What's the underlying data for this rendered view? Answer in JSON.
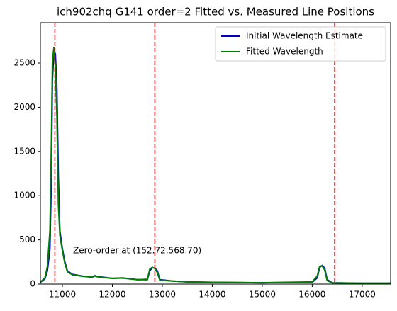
{
  "chart_data": {
    "type": "line",
    "title": "ich902chq G141 order=2 Fitted vs. Measured Line Positions",
    "annotation": "Zero-order at (152.72,568.70)",
    "x": [
      10560,
      10650,
      10700,
      10750,
      10780,
      10800,
      10830,
      10860,
      10890,
      10920,
      10950,
      11000,
      11050,
      11100,
      11200,
      11400,
      11600,
      11650,
      11700,
      12000,
      12200,
      12500,
      12700,
      12750,
      12800,
      12850,
      12900,
      12950,
      13200,
      13500,
      14000,
      15000,
      16000,
      16100,
      16150,
      16200,
      16250,
      16300,
      16400,
      17000,
      17570
    ],
    "series": [
      {
        "name": "Initial Wavelength Estimate",
        "color": "#0000cc",
        "values": [
          20,
          60,
          150,
          400,
          1200,
          2300,
          2650,
          2600,
          2200,
          1200,
          600,
          400,
          250,
          150,
          110,
          90,
          80,
          95,
          85,
          65,
          70,
          50,
          50,
          150,
          185,
          180,
          150,
          50,
          35,
          25,
          20,
          15,
          20,
          70,
          190,
          210,
          180,
          50,
          15,
          10,
          10
        ]
      },
      {
        "name": "Fitted Wavelength",
        "color": "#008000",
        "values": [
          22,
          70,
          200,
          600,
          1600,
          2500,
          2680,
          2450,
          1900,
          900,
          550,
          380,
          230,
          140,
          105,
          88,
          78,
          92,
          82,
          64,
          68,
          49,
          55,
          170,
          190,
          175,
          130,
          45,
          34,
          25,
          20,
          15,
          25,
          90,
          200,
          205,
          160,
          40,
          14,
          10,
          10
        ]
      }
    ],
    "vlines": [
      10850,
      12850,
      16450
    ],
    "vline_color": "#e41a1c",
    "xlim": [
      10560,
      17570
    ],
    "ylim": [
      0,
      2957
    ],
    "xticks": [
      11000,
      12000,
      13000,
      14000,
      15000,
      16000,
      17000
    ],
    "yticks": [
      0,
      500,
      1000,
      1500,
      2000,
      2500
    ],
    "legend": "upper right"
  }
}
